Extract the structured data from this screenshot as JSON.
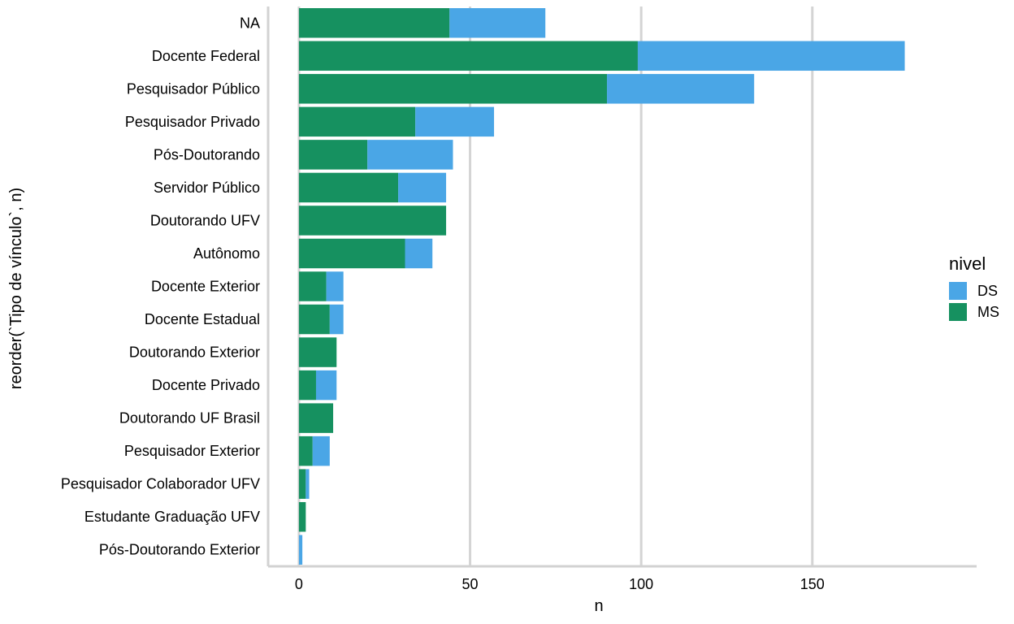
{
  "chart_data": {
    "type": "bar",
    "orientation": "horizontal",
    "stacked": true,
    "categories": [
      "NA",
      "Docente Federal",
      "Pesquisador Público",
      "Pesquisador Privado",
      "Pós-Doutorando",
      "Servidor Público",
      "Doutorando UFV",
      "Autônomo",
      "Docente Exterior",
      "Docente Estadual",
      "Doutorando Exterior",
      "Docente Privado",
      "Doutorando UF Brasil",
      "Pesquisador Exterior",
      "Pesquisador Colaborador UFV",
      "Estudante Graduação UFV",
      "Pós-Doutorando Exterior"
    ],
    "series": [
      {
        "name": "MS",
        "color": "#169160",
        "values": [
          44,
          99,
          90,
          34,
          20,
          29,
          43,
          31,
          8,
          9,
          11,
          5,
          10,
          4,
          2,
          2,
          0
        ]
      },
      {
        "name": "DS",
        "color": "#4AA6E6",
        "values": [
          28,
          78,
          43,
          23,
          25,
          14,
          0,
          8,
          5,
          4,
          0,
          6,
          0,
          5,
          1,
          0,
          1
        ]
      }
    ],
    "title": "",
    "xlabel": "n",
    "ylabel": "reorder(`Tipo de vínculo`, n)",
    "xlim": [
      -9,
      198
    ],
    "xticks": [
      0,
      50,
      100,
      150
    ],
    "grid": true,
    "legend": {
      "title": "nivel",
      "position": "right",
      "entries": [
        {
          "label": "DS",
          "color": "#4AA6E6"
        },
        {
          "label": "MS",
          "color": "#169160"
        }
      ]
    }
  }
}
